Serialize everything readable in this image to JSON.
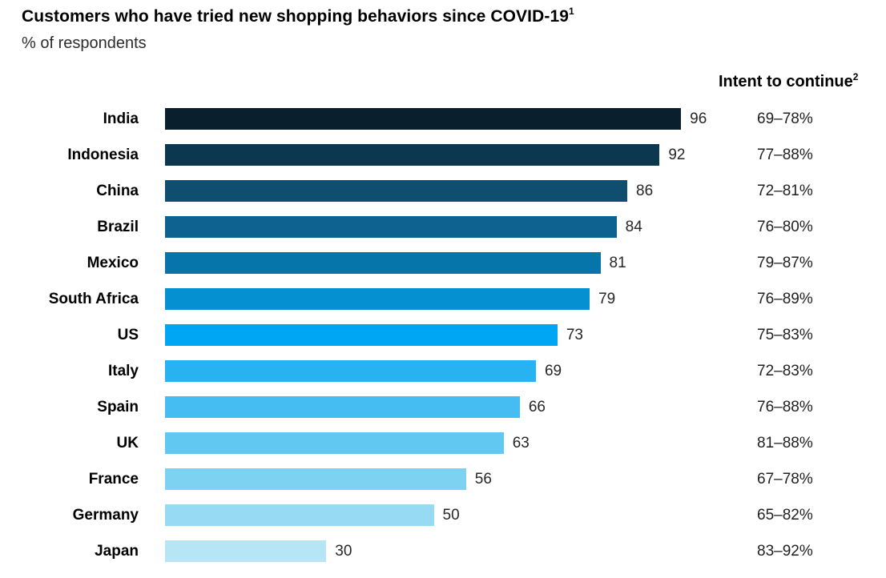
{
  "header": {
    "title": "Customers who have tried new shopping behaviors since COVID-19",
    "title_superscript": "1",
    "subtitle": "% of respondents"
  },
  "intent_header": {
    "text": "Intent to continue",
    "superscript": "2"
  },
  "colors": {
    "background": "#ffffff",
    "title_text": "#000000",
    "body_text": "#262626"
  },
  "chart_data": {
    "type": "bar",
    "orientation": "horizontal",
    "title": "Customers who have tried new shopping behaviors since COVID-19",
    "subtitle": "% of respondents",
    "xlabel": "",
    "ylabel": "",
    "xlim": [
      0,
      100
    ],
    "grid": false,
    "legend": "none",
    "value_labels_shown": true,
    "categories": [
      "India",
      "Indonesia",
      "China",
      "Brazil",
      "Mexico",
      "South Africa",
      "US",
      "Italy",
      "Spain",
      "UK",
      "France",
      "Germany",
      "Japan"
    ],
    "values": [
      96,
      92,
      86,
      84,
      81,
      79,
      73,
      69,
      66,
      63,
      56,
      50,
      30
    ],
    "bar_colors": [
      "#0a1f2d",
      "#0c384f",
      "#0e4e6f",
      "#0d6290",
      "#0676aa",
      "#0590d2",
      "#00a6f4",
      "#27b2f1",
      "#45bdf2",
      "#61c8f2",
      "#7dd2f2",
      "#96daf3",
      "#b6e5f5"
    ],
    "annotation_column": {
      "header": "Intent to continue",
      "header_superscript": "2",
      "values": [
        "69–78%",
        "77–88%",
        "72–81%",
        "76–80%",
        "79–87%",
        "76–89%",
        "75–83%",
        "72–83%",
        "76–88%",
        "81–88%",
        "67–78%",
        "65–82%",
        "83–92%"
      ]
    }
  }
}
